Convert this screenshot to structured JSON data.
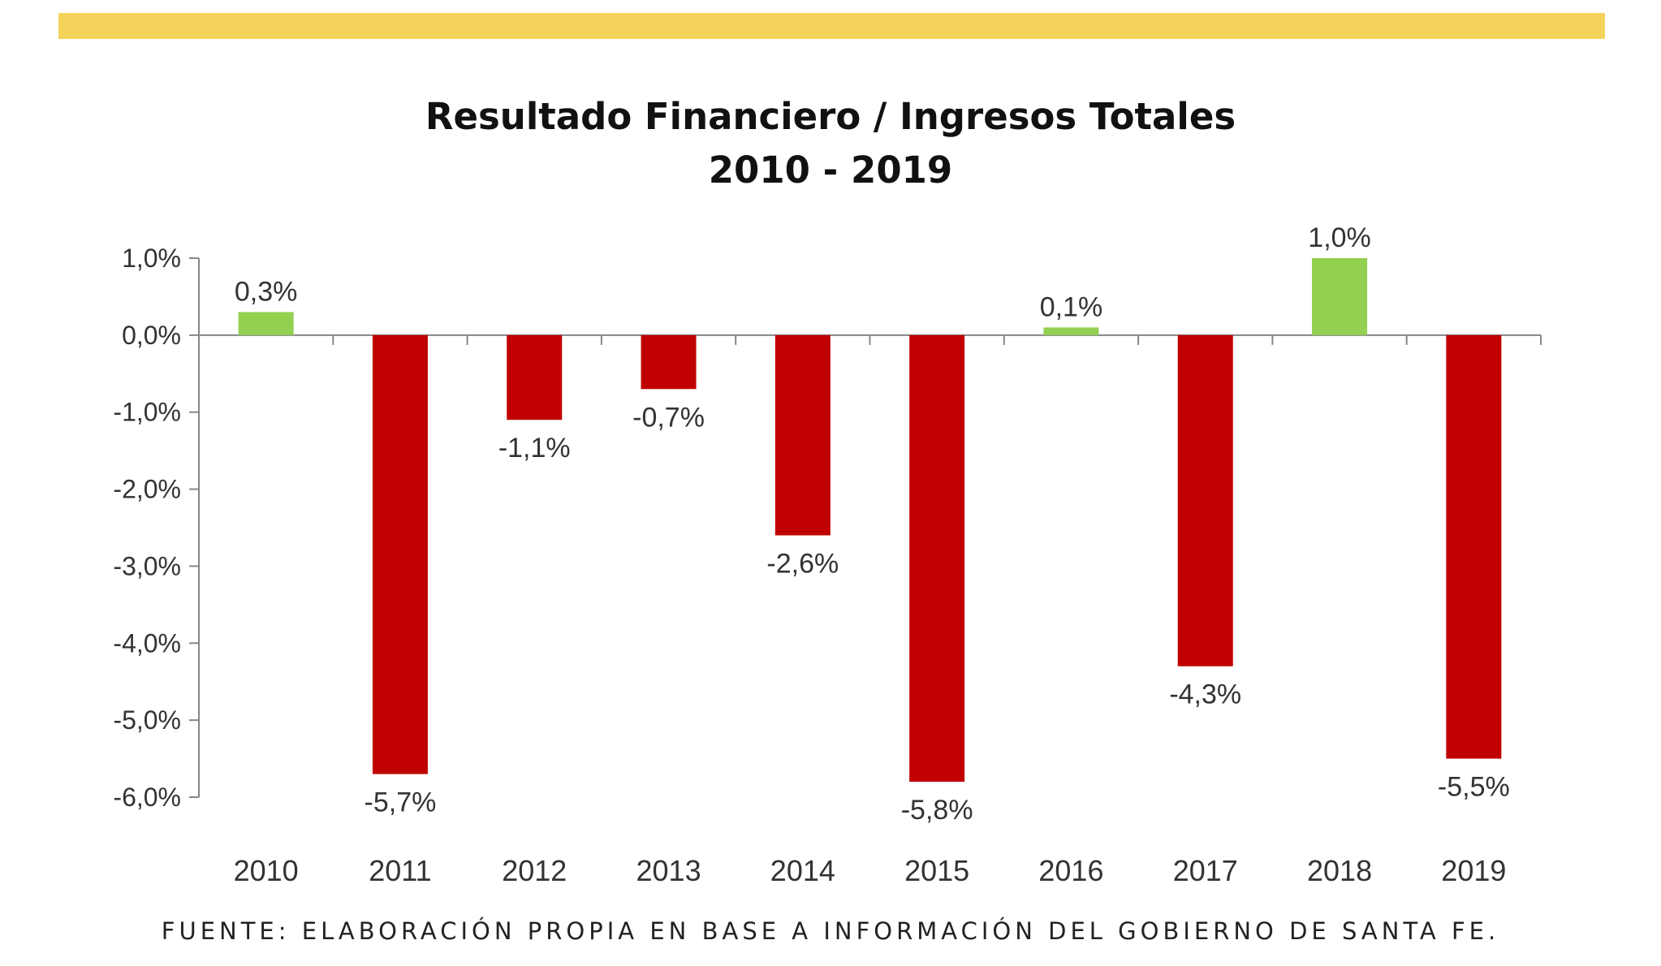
{
  "chart_data": {
    "type": "bar",
    "title": "Resultado Financiero / Ingresos Totales",
    "subtitle": "2010 - 2019",
    "categories": [
      "2010",
      "2011",
      "2012",
      "2013",
      "2014",
      "2015",
      "2016",
      "2017",
      "2018",
      "2019"
    ],
    "values": [
      0.3,
      -5.7,
      -1.1,
      -0.7,
      -2.6,
      -5.8,
      0.1,
      -4.3,
      1.0,
      -5.5
    ],
    "data_labels": [
      "0,3%",
      "-5,7%",
      "-1,1%",
      "-0,7%",
      "-2,6%",
      "-5,8%",
      "0,1%",
      "-4,3%",
      "1,0%",
      "-5,5%"
    ],
    "ylim": [
      -6,
      1
    ],
    "yticks": [
      1,
      0,
      -1,
      -2,
      -3,
      -4,
      -5,
      -6
    ],
    "ytick_labels": [
      "1,0%",
      "0,0%",
      "-1,0%",
      "-2,0%",
      "-3,0%",
      "-4,0%",
      "-5,0%",
      "-6,0%"
    ],
    "xlabel": "",
    "ylabel": "",
    "grid": false,
    "legend": "none",
    "colors": {
      "positive": "#92d050",
      "negative": "#c00000",
      "axis": "#868686"
    }
  },
  "accent_bar_color": "#f5d35b",
  "source": "FUENTE: ELABORACIÓN PROPIA EN BASE A INFORMACIÓN DEL GOBIERNO DE SANTA FE."
}
